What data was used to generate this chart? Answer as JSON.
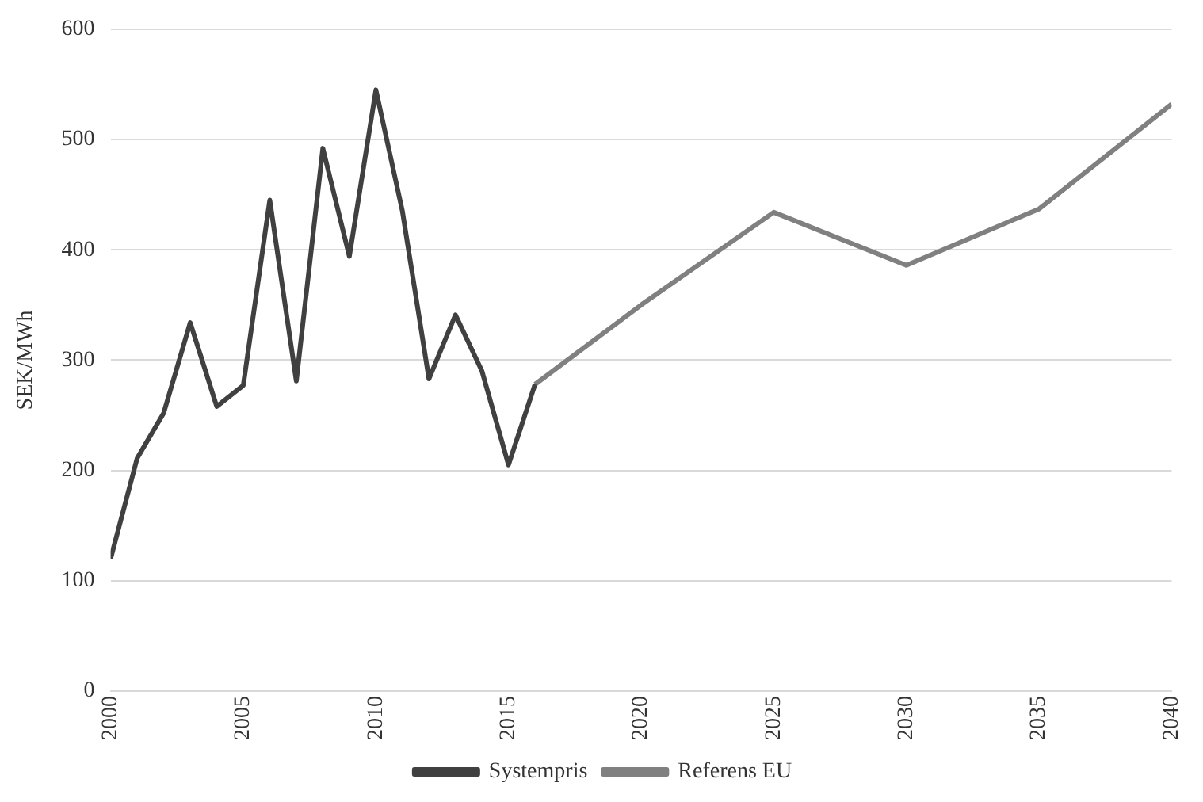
{
  "chart_data": {
    "type": "line",
    "ylabel": "SEK/MWh",
    "xlim": [
      2000,
      2040
    ],
    "xticks": [
      2000,
      2005,
      2010,
      2015,
      2020,
      2025,
      2030,
      2035,
      2040
    ],
    "ylim": [
      0,
      600
    ],
    "yticks": [
      0,
      100,
      200,
      300,
      400,
      500,
      600
    ],
    "grid": "y",
    "legend": "bottom",
    "marker": "none",
    "line_style": "solid",
    "series": [
      {
        "name": "Systempris",
        "color": "#404040",
        "x": [
          2000,
          2001,
          2002,
          2003,
          2004,
          2005,
          2006,
          2007,
          2008,
          2009,
          2010,
          2011,
          2012,
          2013,
          2014,
          2015,
          2016
        ],
        "values": [
          120,
          211,
          252,
          334,
          258,
          277,
          445,
          281,
          492,
          394,
          545,
          435,
          283,
          341,
          290,
          205,
          278
        ]
      },
      {
        "name": "Referens EU",
        "color": "#808080",
        "x": [
          2016,
          2020,
          2025,
          2030,
          2035,
          2040
        ],
        "values": [
          278,
          350,
          434,
          386,
          437,
          532
        ]
      }
    ]
  }
}
